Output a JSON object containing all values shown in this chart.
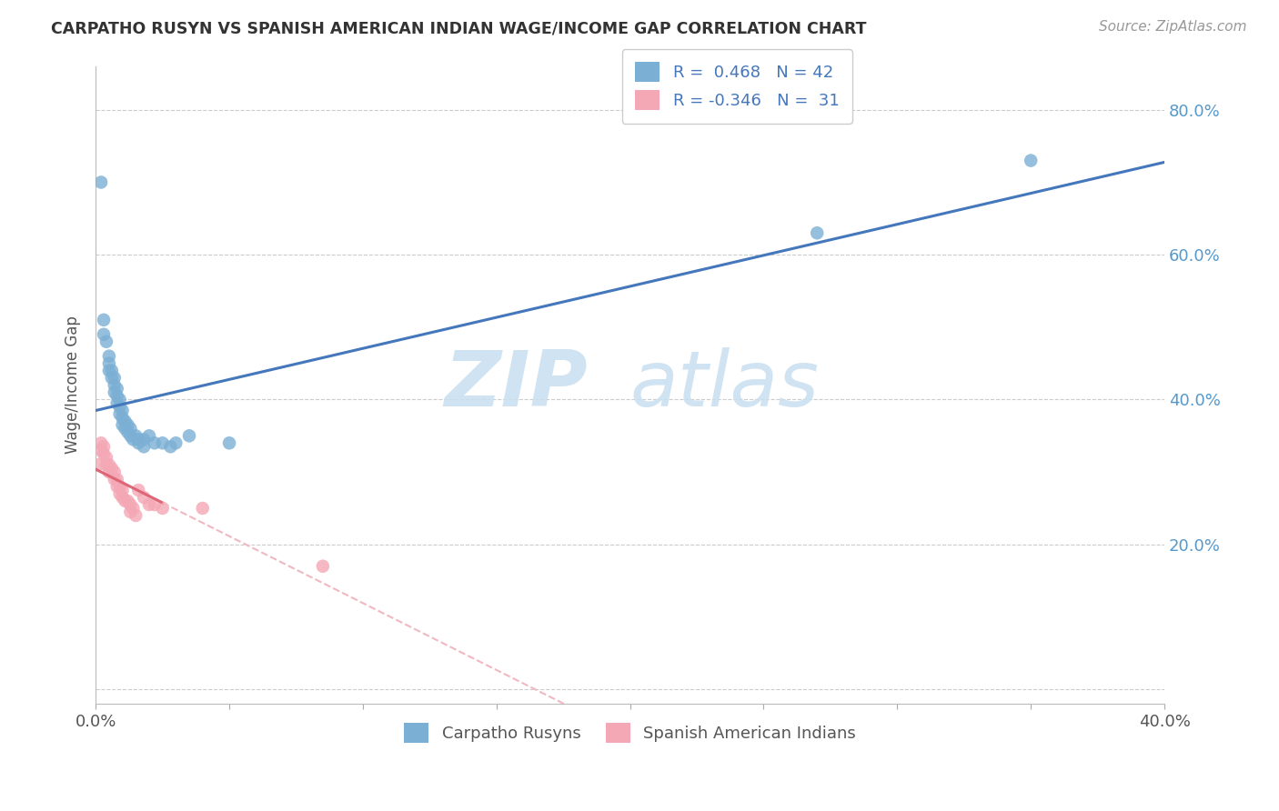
{
  "title": "CARPATHO RUSYN VS SPANISH AMERICAN INDIAN WAGE/INCOME GAP CORRELATION CHART",
  "source": "Source: ZipAtlas.com",
  "ylabel": "Wage/Income Gap",
  "xlabel_blue": "Carpatho Rusyns",
  "xlabel_pink": "Spanish American Indians",
  "xlim": [
    0.0,
    0.4
  ],
  "ylim": [
    -0.02,
    0.86
  ],
  "xticks": [
    0.0,
    0.05,
    0.1,
    0.15,
    0.2,
    0.25,
    0.3,
    0.35,
    0.4
  ],
  "xtick_labels": [
    "0.0%",
    "",
    "",
    "",
    "",
    "",
    "",
    "",
    "40.0%"
  ],
  "ytick_positions": [
    0.0,
    0.2,
    0.4,
    0.6,
    0.8
  ],
  "ytick_labels_right": [
    "",
    "20.0%",
    "40.0%",
    "60.0%",
    "80.0%"
  ],
  "R_blue": 0.468,
  "N_blue": 42,
  "R_pink": -0.346,
  "N_pink": 31,
  "blue_color": "#7bafd4",
  "pink_color": "#f4a7b5",
  "blue_line_color": "#4477bb",
  "pink_line_color": "#dd6677",
  "pink_dash_color": "#f0b8c0",
  "watermark_zip": "ZIP",
  "watermark_atlas": "atlas",
  "blue_x": [
    0.002,
    0.003,
    0.003,
    0.004,
    0.005,
    0.005,
    0.005,
    0.006,
    0.006,
    0.007,
    0.007,
    0.007,
    0.008,
    0.008,
    0.008,
    0.009,
    0.009,
    0.009,
    0.01,
    0.01,
    0.01,
    0.011,
    0.011,
    0.012,
    0.012,
    0.013,
    0.013,
    0.014,
    0.015,
    0.016,
    0.016,
    0.018,
    0.018,
    0.02,
    0.022,
    0.025,
    0.028,
    0.03,
    0.035,
    0.05,
    0.27,
    0.35
  ],
  "blue_y": [
    0.7,
    0.51,
    0.49,
    0.48,
    0.46,
    0.45,
    0.44,
    0.44,
    0.43,
    0.43,
    0.42,
    0.41,
    0.415,
    0.405,
    0.395,
    0.4,
    0.39,
    0.38,
    0.385,
    0.375,
    0.365,
    0.37,
    0.36,
    0.365,
    0.355,
    0.36,
    0.35,
    0.345,
    0.35,
    0.345,
    0.34,
    0.345,
    0.335,
    0.35,
    0.34,
    0.34,
    0.335,
    0.34,
    0.35,
    0.34,
    0.63,
    0.73
  ],
  "pink_x": [
    0.001,
    0.002,
    0.002,
    0.003,
    0.003,
    0.004,
    0.004,
    0.005,
    0.005,
    0.006,
    0.007,
    0.007,
    0.008,
    0.008,
    0.009,
    0.009,
    0.01,
    0.01,
    0.011,
    0.012,
    0.013,
    0.013,
    0.014,
    0.015,
    0.016,
    0.018,
    0.02,
    0.022,
    0.025,
    0.04,
    0.085
  ],
  "pink_y": [
    0.31,
    0.34,
    0.33,
    0.335,
    0.325,
    0.32,
    0.31,
    0.31,
    0.3,
    0.305,
    0.3,
    0.29,
    0.29,
    0.28,
    0.28,
    0.27,
    0.275,
    0.265,
    0.26,
    0.26,
    0.255,
    0.245,
    0.25,
    0.24,
    0.275,
    0.265,
    0.255,
    0.255,
    0.25,
    0.25,
    0.17
  ]
}
